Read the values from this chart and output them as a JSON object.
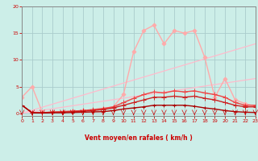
{
  "xlabel": "Vent moyen/en rafales ( km/h )",
  "xlim": [
    0,
    23
  ],
  "ylim": [
    -0.5,
    20
  ],
  "xticks": [
    0,
    1,
    2,
    3,
    4,
    5,
    6,
    7,
    8,
    9,
    10,
    11,
    12,
    13,
    14,
    15,
    16,
    17,
    18,
    19,
    20,
    21,
    22,
    23
  ],
  "yticks": [
    0,
    5,
    10,
    15,
    20
  ],
  "bg_color": "#cceee8",
  "grid_color": "#aacccc",
  "lines": [
    {
      "x": [
        0,
        23
      ],
      "y": [
        0.0,
        13.0
      ],
      "color": "#ffbbcc",
      "lw": 0.9,
      "marker": null,
      "ms": 0
    },
    {
      "x": [
        0,
        23
      ],
      "y": [
        0.0,
        6.5
      ],
      "color": "#ffbbcc",
      "lw": 0.9,
      "marker": null,
      "ms": 0
    },
    {
      "x": [
        0,
        1,
        2,
        3,
        4,
        5,
        6,
        7,
        8,
        9,
        10,
        11,
        12,
        13,
        14,
        15,
        16,
        17,
        18,
        19,
        20,
        21,
        22,
        23
      ],
      "y": [
        3.0,
        5.0,
        0.2,
        0.2,
        0.3,
        0.4,
        0.5,
        0.6,
        0.8,
        1.2,
        3.5,
        11.5,
        15.5,
        16.5,
        13.0,
        15.5,
        15.0,
        15.5,
        10.5,
        3.0,
        6.5,
        2.5,
        1.8,
        1.3
      ],
      "color": "#ffaaaa",
      "lw": 1.0,
      "marker": "D",
      "ms": 2.5
    },
    {
      "x": [
        0,
        1,
        2,
        3,
        4,
        5,
        6,
        7,
        8,
        9,
        10,
        11,
        12,
        13,
        14,
        15,
        16,
        17,
        18,
        19,
        20,
        21,
        22,
        23
      ],
      "y": [
        1.5,
        0.1,
        0.1,
        0.2,
        0.3,
        0.4,
        0.5,
        0.7,
        0.9,
        1.2,
        2.0,
        2.8,
        3.5,
        4.0,
        3.8,
        4.2,
        4.0,
        4.2,
        3.8,
        3.5,
        3.0,
        2.0,
        1.5,
        1.5
      ],
      "color": "#ee4444",
      "lw": 1.0,
      "marker": "+",
      "ms": 4
    },
    {
      "x": [
        0,
        1,
        2,
        3,
        4,
        5,
        6,
        7,
        8,
        9,
        10,
        11,
        12,
        13,
        14,
        15,
        16,
        17,
        18,
        19,
        20,
        21,
        22,
        23
      ],
      "y": [
        1.5,
        0.1,
        0.1,
        0.2,
        0.2,
        0.3,
        0.4,
        0.5,
        0.7,
        1.0,
        1.5,
        2.0,
        2.5,
        3.0,
        3.0,
        3.2,
        3.0,
        3.2,
        2.8,
        2.5,
        2.0,
        1.5,
        1.2,
        1.2
      ],
      "color": "#cc2222",
      "lw": 1.0,
      "marker": "+",
      "ms": 4
    },
    {
      "x": [
        0,
        1,
        2,
        3,
        4,
        5,
        6,
        7,
        8,
        9,
        10,
        11,
        12,
        13,
        14,
        15,
        16,
        17,
        18,
        19,
        20,
        21,
        22,
        23
      ],
      "y": [
        1.5,
        0.1,
        0.05,
        0.1,
        0.1,
        0.15,
        0.2,
        0.25,
        0.3,
        0.5,
        0.8,
        1.0,
        1.2,
        1.5,
        1.5,
        1.5,
        1.5,
        1.3,
        1.0,
        0.8,
        0.5,
        0.3,
        0.2,
        0.15
      ],
      "color": "#aa0000",
      "lw": 1.0,
      "marker": "+",
      "ms": 3
    }
  ],
  "arrows": [
    0,
    1,
    2,
    3,
    4,
    5,
    6,
    7,
    8,
    9,
    10,
    11,
    12,
    13,
    14,
    15,
    16,
    17,
    18,
    19,
    20,
    21,
    22,
    23
  ]
}
